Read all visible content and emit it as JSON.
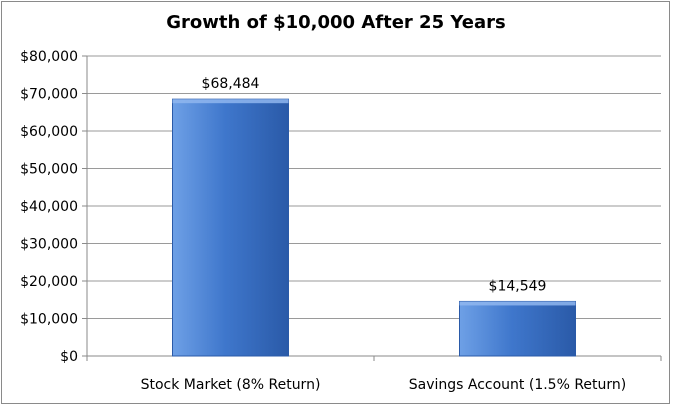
{
  "chart_data": {
    "type": "bar",
    "title": "Growth of $10,000 After 25 Years",
    "xlabel": "",
    "ylabel": "",
    "categories": [
      "Stock Market (8% Return)",
      "Savings Account (1.5% Return)"
    ],
    "values": [
      68484,
      14549
    ],
    "data_labels": [
      "$68,484",
      "$14,549"
    ],
    "ylim": [
      0,
      80000
    ],
    "y_ticks": [
      0,
      10000,
      20000,
      30000,
      40000,
      50000,
      60000,
      70000,
      80000
    ],
    "y_tick_labels": [
      "$0",
      "$10,000",
      "$20,000",
      "$30,000",
      "$40,000",
      "$50,000",
      "$60,000",
      "$70,000",
      "$80,000"
    ],
    "grid": true,
    "legend": "none",
    "colors": {
      "bar_light": "#6ea0e6",
      "bar_mid": "#3f77cc",
      "bar_dark": "#2a5aa8",
      "bar_top": "#8fb6ee",
      "gridline": "#9a9a9a",
      "axis": "#8a8a8a"
    }
  }
}
